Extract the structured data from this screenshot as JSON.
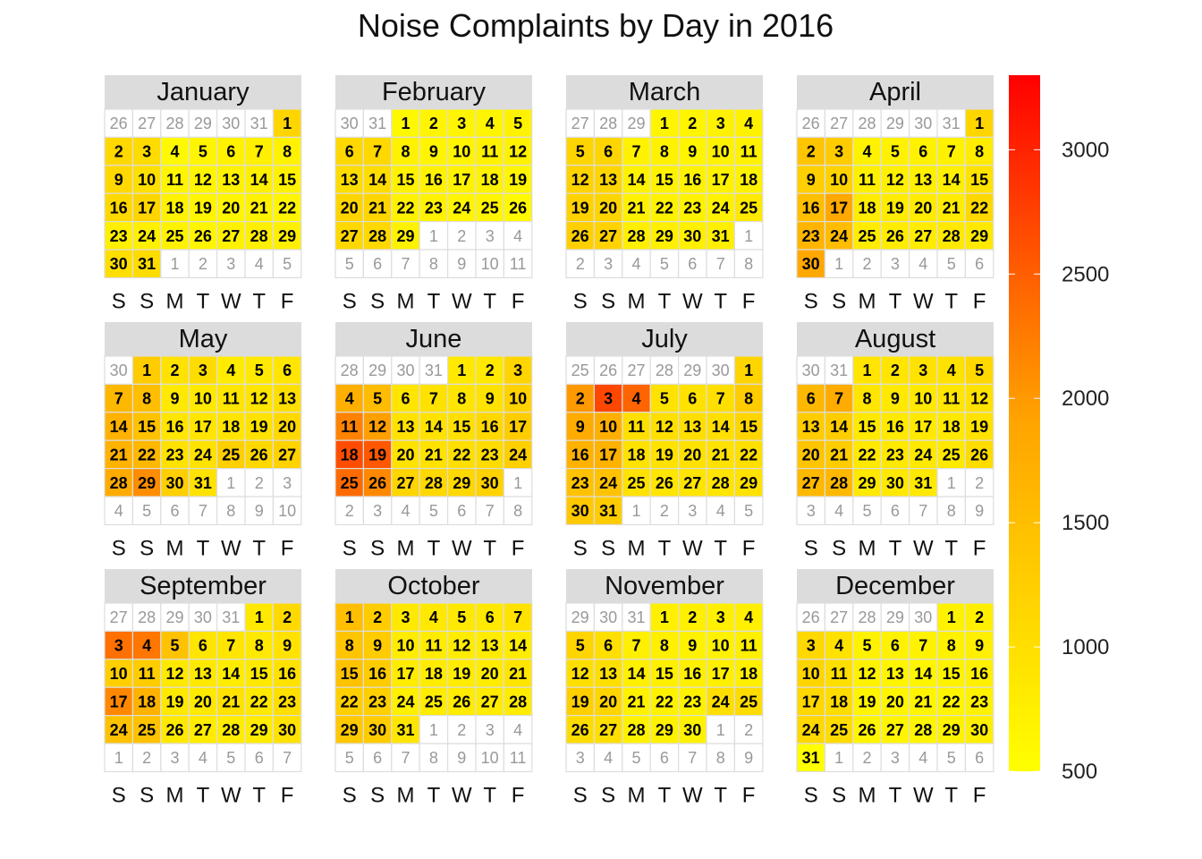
{
  "title": "Noise Complaints by Day in 2016",
  "chart_data": {
    "type": "heatmap",
    "year": 2016,
    "week_start": "Saturday",
    "weekday_labels": [
      "S",
      "S",
      "M",
      "T",
      "W",
      "T",
      "F"
    ],
    "color_scale": {
      "low": "#ffff00",
      "mid": "#ffa500",
      "high": "#ff0000",
      "min": 500,
      "max": 3300,
      "ticks": [
        500,
        1000,
        1500,
        2000,
        2500,
        3000
      ]
    },
    "months": [
      {
        "name": "January",
        "first_weekday": 6,
        "days": 31,
        "values": [
          1150,
          1100,
          1050,
          600,
          650,
          700,
          750,
          700,
          1100,
          1000,
          650,
          650,
          700,
          750,
          700,
          1100,
          1150,
          700,
          650,
          650,
          700,
          650,
          750,
          750,
          700,
          650,
          700,
          750,
          750,
          1000,
          1050
        ]
      },
      {
        "name": "February",
        "first_weekday": 2,
        "days": 29,
        "values": [
          600,
          650,
          650,
          650,
          700,
          1100,
          1100,
          700,
          650,
          650,
          700,
          700,
          1050,
          1050,
          700,
          700,
          700,
          700,
          650,
          1150,
          1150,
          700,
          700,
          650,
          650,
          600,
          1100,
          1100,
          700
        ]
      },
      {
        "name": "March",
        "first_weekday": 3,
        "days": 31,
        "values": [
          650,
          650,
          700,
          700,
          1150,
          1150,
          700,
          700,
          650,
          700,
          700,
          1200,
          1150,
          700,
          700,
          700,
          700,
          700,
          1200,
          1150,
          700,
          700,
          700,
          700,
          850,
          1250,
          1200,
          750,
          750,
          750,
          750
        ]
      },
      {
        "name": "April",
        "first_weekday": 6,
        "days": 30,
        "values": [
          1150,
          1400,
          1300,
          700,
          700,
          700,
          700,
          800,
          1250,
          1200,
          750,
          750,
          750,
          750,
          950,
          1500,
          1850,
          800,
          800,
          800,
          800,
          1100,
          1650,
          1550,
          800,
          800,
          800,
          850,
          850,
          1850
        ]
      },
      {
        "name": "May",
        "first_weekday": 1,
        "days": 31,
        "values": [
          1300,
          950,
          1050,
          800,
          850,
          900,
          1600,
          1500,
          850,
          850,
          900,
          900,
          1000,
          1700,
          1450,
          900,
          900,
          900,
          950,
          1100,
          1700,
          1600,
          950,
          950,
          1250,
          1100,
          1200,
          1800,
          2100,
          1250,
          950
        ]
      },
      {
        "name": "June",
        "first_weekday": 4,
        "days": 30,
        "values": [
          850,
          850,
          1150,
          1750,
          1550,
          900,
          950,
          900,
          950,
          1200,
          2200,
          1950,
          950,
          950,
          1000,
          1100,
          1300,
          2650,
          2550,
          950,
          950,
          1000,
          1050,
          1250,
          2400,
          2150,
          1150,
          1100,
          1100,
          1200
        ]
      },
      {
        "name": "July",
        "first_weekday": 6,
        "days": 31,
        "values": [
          1150,
          2000,
          2700,
          2450,
          950,
          950,
          1000,
          1300,
          1800,
          1750,
          1000,
          1000,
          1000,
          1000,
          1150,
          1700,
          1700,
          950,
          950,
          950,
          950,
          1000,
          1450,
          1450,
          950,
          900,
          900,
          900,
          950,
          1350,
          1300
        ]
      },
      {
        "name": "August",
        "first_weekday": 2,
        "days": 31,
        "values": [
          900,
          900,
          950,
          950,
          1100,
          1600,
          1800,
          900,
          850,
          850,
          900,
          950,
          1300,
          1300,
          850,
          850,
          850,
          850,
          950,
          1400,
          1300,
          850,
          850,
          850,
          850,
          1050,
          1600,
          1600,
          850,
          850,
          850
        ]
      },
      {
        "name": "September",
        "first_weekday": 5,
        "days": 30,
        "values": [
          850,
          1100,
          2350,
          2300,
          1450,
          900,
          900,
          850,
          950,
          1250,
          1300,
          850,
          850,
          800,
          850,
          950,
          2150,
          1700,
          850,
          850,
          950,
          850,
          1000,
          1450,
          1450,
          850,
          800,
          800,
          800,
          950
        ]
      },
      {
        "name": "October",
        "first_weekday": 0,
        "days": 31,
        "values": [
          1500,
          1300,
          850,
          850,
          850,
          850,
          950,
          1400,
          1300,
          800,
          800,
          800,
          800,
          800,
          1450,
          1300,
          800,
          800,
          800,
          800,
          900,
          1250,
          1250,
          750,
          800,
          800,
          800,
          800,
          1350,
          1300,
          900
        ]
      },
      {
        "name": "November",
        "first_weekday": 3,
        "days": 30,
        "values": [
          750,
          750,
          750,
          750,
          1150,
          1000,
          750,
          750,
          700,
          700,
          750,
          1000,
          1000,
          750,
          750,
          750,
          750,
          750,
          1250,
          1150,
          700,
          700,
          700,
          1000,
          1050,
          1050,
          1000,
          700,
          700,
          700
        ]
      },
      {
        "name": "December",
        "first_weekday": 5,
        "days": 31,
        "values": [
          700,
          750,
          1100,
          950,
          700,
          700,
          700,
          700,
          750,
          1150,
          1000,
          700,
          650,
          650,
          700,
          750,
          1100,
          1050,
          650,
          650,
          650,
          650,
          700,
          1100,
          1050,
          650,
          650,
          650,
          700,
          750,
          450
        ]
      }
    ]
  }
}
